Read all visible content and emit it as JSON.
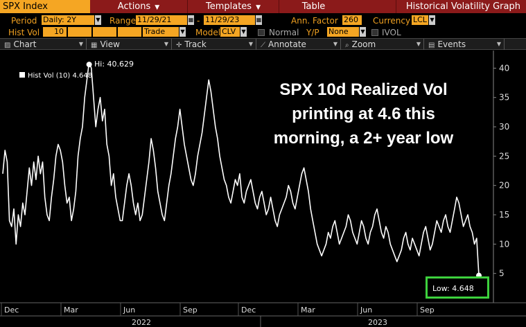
{
  "menubar": {
    "ticker": "SPX Index",
    "actions": "Actions",
    "templates": "Templates",
    "table": "Table",
    "graph_title": "Historical Volatility Graph"
  },
  "params": {
    "period_label": "Period",
    "period_value": "Daily: 2Y",
    "range_label": "Range",
    "range_start": "11/29/21",
    "range_sep": "-",
    "range_end": "11/29/23",
    "ann_factor_label": "Ann. Factor",
    "ann_factor_value": "260",
    "currency_label": "Currency",
    "currency_value": "LCL",
    "histvol_label": "Hist Vol",
    "histvol_value": "10",
    "trade_value": "Trade",
    "model_label": "Model",
    "model_value": "CLV",
    "normal_label": "Normal",
    "yp_label": "Y/P",
    "yp_value": "None",
    "ivol_label": "IVOL"
  },
  "toolbar": {
    "chart": "Chart",
    "view": "View",
    "track": "Track",
    "annotate": "Annotate",
    "zoom": "Zoom",
    "events": "Events"
  },
  "annotation": {
    "line1": "SPX 10d Realized Vol",
    "line2": "printing at 4.6 this",
    "line3": "morning, a 2+ year low"
  },
  "markers": {
    "hi_label": "Hi: 40.629",
    "low_label": "Low: 4.648"
  },
  "colors": {
    "menubar": "#8b1a1a",
    "ticker": "#f5a623",
    "highlight_box": "#3dd13d",
    "line": "#ffffff"
  },
  "chart_data": {
    "type": "line",
    "legend": "Hist Vol (10) 4.648",
    "ylim": [
      0,
      43
    ],
    "yticks": [
      5,
      10,
      15,
      20,
      25,
      30,
      35,
      40
    ],
    "xtick_labels": [
      "Dec",
      "Mar",
      "Jun",
      "Sep",
      "Dec",
      "Mar",
      "Jun",
      "Sep"
    ],
    "year_labels": [
      "2022",
      "2023"
    ],
    "grid": false,
    "series": [
      {
        "name": "Hist Vol (10)",
        "values": [
          22,
          26,
          24,
          14,
          13,
          16,
          10,
          15,
          13,
          17,
          15,
          19,
          23,
          20,
          24,
          21,
          25,
          22,
          24,
          18,
          15,
          14,
          18,
          21,
          25,
          27,
          26,
          24,
          20,
          17,
          18,
          14,
          16,
          19,
          25,
          28,
          30,
          35,
          38,
          41,
          40,
          35,
          30,
          33,
          35,
          31,
          33,
          27,
          25,
          20,
          22,
          18,
          16,
          14,
          14,
          17,
          20,
          22,
          20,
          17,
          15,
          17,
          14,
          15,
          18,
          21,
          24,
          28,
          26,
          23,
          19,
          17,
          15,
          14,
          17,
          20,
          22,
          25,
          28,
          30,
          33,
          30,
          27,
          25,
          23,
          21,
          20,
          22,
          25,
          27,
          29,
          32,
          35,
          38,
          36,
          33,
          30,
          28,
          25,
          23,
          21,
          20,
          18,
          17,
          19,
          21,
          20,
          22,
          18,
          17,
          19,
          20,
          21,
          19,
          17,
          16,
          18,
          19,
          17,
          15,
          16,
          18,
          16,
          14,
          13,
          15,
          16,
          17,
          18,
          20,
          19,
          17,
          16,
          18,
          20,
          22,
          23,
          21,
          19,
          16,
          14,
          12,
          10,
          9,
          8,
          9,
          10,
          12,
          11,
          13,
          14,
          12,
          10,
          11,
          12,
          13,
          15,
          14,
          12,
          11,
          10,
          12,
          14,
          13,
          11,
          10,
          12,
          13,
          15,
          16,
          14,
          12,
          11,
          13,
          12,
          10,
          9,
          8,
          7,
          8,
          9,
          11,
          12,
          10,
          9,
          11,
          10,
          9,
          8,
          10,
          12,
          13,
          11,
          9,
          10,
          12,
          14,
          13,
          12,
          14,
          15,
          13,
          12,
          14,
          16,
          18,
          17,
          15,
          13,
          14,
          15,
          13,
          12,
          10,
          11,
          4.648
        ]
      }
    ],
    "hi": {
      "value": 40.629,
      "label": "Hi: 40.629"
    },
    "low": {
      "value": 4.648,
      "label": "Low: 4.648"
    }
  }
}
